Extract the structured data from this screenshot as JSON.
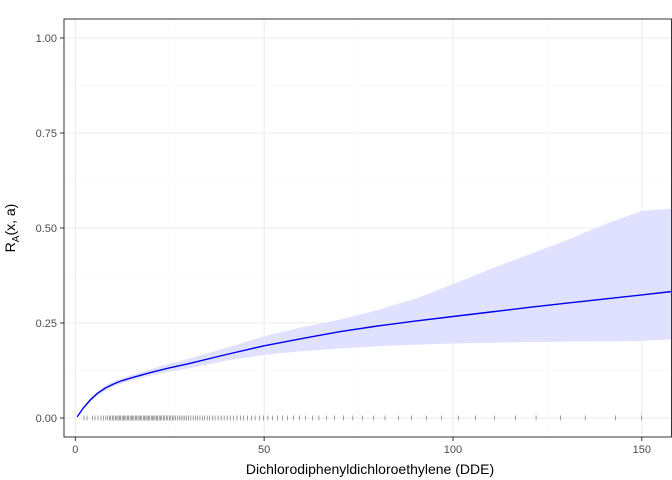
{
  "chart_data": {
    "type": "line",
    "title": "",
    "xlabel": "Dichlorodiphenyldichloroethylene (DDE)",
    "ylabel": "R",
    "ylabel_subscript": "A",
    "ylabel_suffix": "(x, a)",
    "xlim": [
      -3,
      158
    ],
    "ylim": [
      -0.05,
      1.05
    ],
    "x_ticks": [
      0,
      50,
      100,
      150
    ],
    "y_ticks": [
      0.0,
      0.25,
      0.5,
      0.75,
      1.0
    ],
    "x_tick_labels": [
      "0",
      "50",
      "100",
      "150"
    ],
    "y_tick_labels": [
      "0.00",
      "0.25",
      "0.50",
      "0.75",
      "1.00"
    ],
    "grid": true,
    "legend": "none",
    "colors": {
      "line": "#0000ee",
      "band": "#e0e0ff",
      "rug": "#000000",
      "panel_border": "#333333",
      "grid_major": "#ebebeb",
      "grid_minor": "#f5f5f5"
    },
    "series": [
      {
        "x": [
          0.5,
          2,
          4,
          6,
          8,
          10,
          12,
          15,
          20,
          25,
          30,
          40,
          50,
          60,
          70,
          80,
          90,
          100,
          110,
          120,
          130,
          140,
          150,
          158
        ],
        "y": [
          0.003,
          0.025,
          0.048,
          0.066,
          0.079,
          0.089,
          0.097,
          0.106,
          0.12,
          0.132,
          0.143,
          0.167,
          0.19,
          0.209,
          0.227,
          0.242,
          0.255,
          0.267,
          0.279,
          0.291,
          0.302,
          0.313,
          0.324,
          0.333
        ],
        "lower": [
          0.003,
          0.022,
          0.043,
          0.06,
          0.072,
          0.082,
          0.09,
          0.099,
          0.112,
          0.122,
          0.131,
          0.151,
          0.166,
          0.176,
          0.183,
          0.189,
          0.193,
          0.196,
          0.198,
          0.2,
          0.201,
          0.202,
          0.203,
          0.207
        ],
        "upper": [
          0.003,
          0.028,
          0.053,
          0.072,
          0.086,
          0.096,
          0.104,
          0.114,
          0.129,
          0.143,
          0.156,
          0.185,
          0.215,
          0.239,
          0.259,
          0.284,
          0.314,
          0.352,
          0.392,
          0.43,
          0.467,
          0.509,
          0.545,
          0.551
        ]
      }
    ],
    "rug": [
      2.3,
      3.1,
      4.5,
      5.2,
      6.0,
      6.8,
      7.5,
      8.1,
      8.6,
      9.0,
      9.4,
      9.8,
      10.2,
      10.6,
      11.0,
      11.3,
      11.7,
      12.0,
      12.4,
      12.7,
      13.1,
      13.4,
      13.8,
      14.1,
      14.5,
      14.8,
      15.2,
      15.5,
      15.9,
      16.2,
      16.6,
      16.9,
      17.3,
      17.6,
      18.0,
      18.3,
      18.7,
      19.0,
      19.4,
      19.7,
      20.1,
      20.4,
      20.8,
      21.1,
      21.5,
      21.8,
      22.2,
      22.5,
      22.9,
      23.3,
      23.7,
      24.1,
      24.5,
      24.9,
      25.3,
      25.7,
      26.1,
      26.5,
      27.0,
      27.5,
      28.0,
      28.5,
      29.0,
      29.5,
      30.0,
      30.6,
      31.2,
      31.8,
      32.4,
      33.0,
      33.6,
      34.2,
      34.9,
      35.6,
      36.3,
      37.0,
      37.8,
      38.6,
      39.4,
      40.2,
      41.0,
      41.9,
      42.8,
      43.7,
      44.6,
      45.6,
      46.6,
      47.6,
      48.7,
      49.8,
      51.0,
      52.2,
      53.5,
      54.8,
      56.2,
      57.7,
      59.3,
      61.0,
      62.8,
      64.5,
      66.5,
      68.7,
      71.0,
      73.5,
      76.0,
      79.0,
      82.0,
      85.5,
      89.0,
      93.0,
      97.0,
      101.5,
      106.0,
      111.0,
      116.5,
      122.0,
      128.5,
      135.0,
      143.0,
      150.0
    ]
  }
}
